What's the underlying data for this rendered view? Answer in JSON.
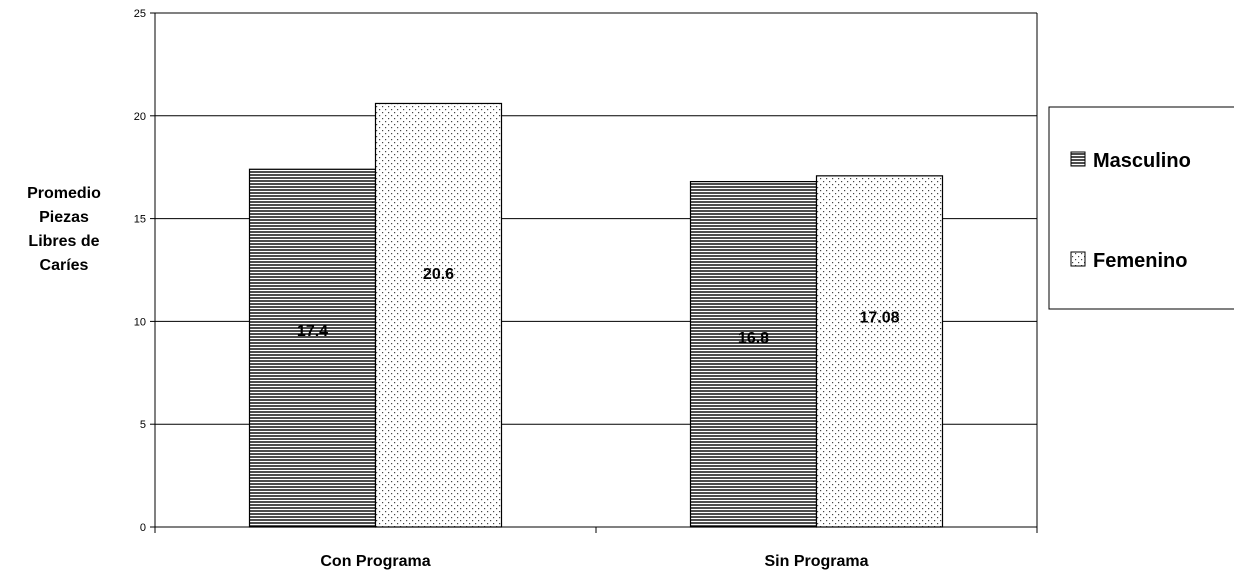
{
  "chart_data": {
    "type": "bar",
    "categories": [
      "Con Programa",
      "Sin Programa"
    ],
    "series": [
      {
        "name": "Masculino",
        "values": [
          17.4,
          16.8
        ],
        "pattern": "horizontal-lines"
      },
      {
        "name": "Femenino",
        "values": [
          20.6,
          17.08
        ],
        "pattern": "dots"
      }
    ],
    "data_labels": [
      [
        "17.4",
        "16.8"
      ],
      [
        "20.6",
        "17.08"
      ]
    ],
    "title": "",
    "xlabel": "",
    "ylabel": [
      "Promedio",
      "Piezas",
      "Libres de",
      "Caríes"
    ],
    "ylim": [
      0,
      25
    ],
    "yticks": [
      0,
      5,
      10,
      15,
      20,
      25
    ],
    "grid": true,
    "legend_position": "right"
  }
}
